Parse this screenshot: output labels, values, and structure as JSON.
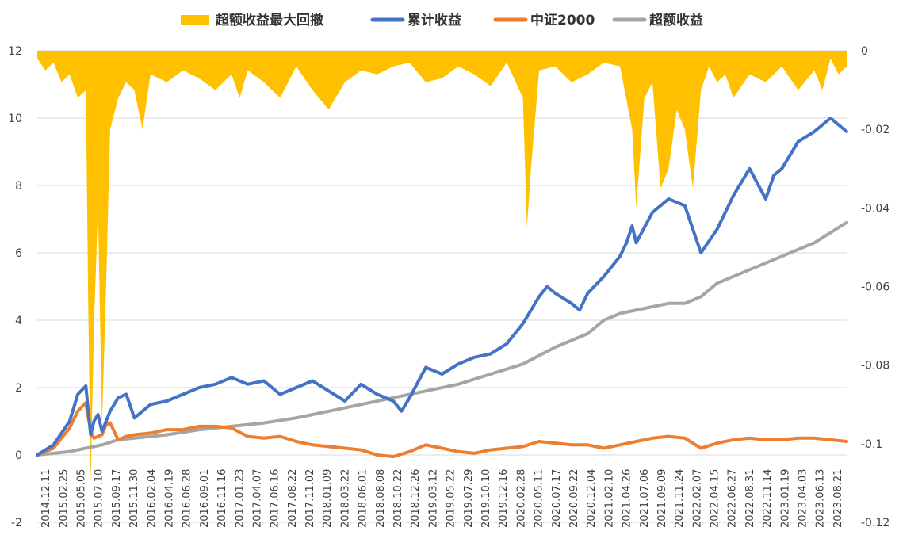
{
  "chart_data": {
    "type": "line",
    "legend": [
      "超额收益最大回撤",
      "累计收益",
      "中证2000",
      "超额收益"
    ],
    "legend_position": "top",
    "grid": true,
    "colors": {
      "drawdown": "#FFC000",
      "cumulative": "#4472C4",
      "csi2000": "#ED7D31",
      "excess": "#A5A5A5",
      "grid": "#D9D9D9",
      "text": "#404040"
    },
    "y_left": {
      "ticks": [
        "-2",
        "0",
        "2",
        "4",
        "6",
        "8",
        "10",
        "12"
      ],
      "range": [
        -2,
        12
      ]
    },
    "y_right": {
      "ticks": [
        "0",
        "-0.02",
        "-0.04",
        "-0.06",
        "-0.08",
        "-0.1",
        "-0.12"
      ],
      "range": [
        -0.12,
        0
      ]
    },
    "x_labels": [
      "2014.12.11",
      "2015.02.25",
      "2015.05.05",
      "2015.07.10",
      "2015.09.17",
      "2015.11.30",
      "2016.02.04",
      "2016.04.19",
      "2016.06.28",
      "2016.09.01",
      "2016.11.16",
      "2017.01.23",
      "2017.04.07",
      "2017.06.16",
      "2017.08.22",
      "2017.11.02",
      "2018.01.09",
      "2018.03.22",
      "2018.06.01",
      "2018.08.08",
      "2018.10.22",
      "2018.12.26",
      "2019.03.12",
      "2019.05.22",
      "2019.07.29",
      "2019.10.10",
      "2019.12.16",
      "2020.02.28",
      "2020.05.11",
      "2020.07.17",
      "2020.09.22",
      "2020.12.04",
      "2021.02.10",
      "2021.04.26",
      "2021.07.06",
      "2021.09.09",
      "2021.11.24",
      "2022.02.07",
      "2022.04.15",
      "2022.06.27",
      "2022.08.31",
      "2022.11.14",
      "2023.01.19",
      "2023.04.03",
      "2023.06.13",
      "2023.08.21"
    ],
    "series": [
      {
        "name": "累计收益",
        "axis": "left",
        "x_positions": [
          0,
          2,
          4,
          5,
          6,
          6.3,
          6.6,
          7,
          7.5,
          8,
          8.5,
          9,
          10,
          11,
          12,
          13,
          14,
          16,
          18,
          20,
          22,
          24,
          26,
          28,
          30,
          32,
          34,
          36,
          38,
          40,
          42,
          44,
          45,
          46,
          48,
          50,
          52,
          54,
          56,
          58,
          60,
          62,
          63,
          64,
          66,
          67,
          68,
          70,
          72,
          72.8,
          73.5,
          74,
          76,
          78,
          80,
          82,
          84,
          86,
          88,
          90,
          91,
          92,
          94,
          96,
          98,
          100
        ],
        "values": [
          0.0,
          0.3,
          1.0,
          1.8,
          2.05,
          1.3,
          0.6,
          1.0,
          1.2,
          0.7,
          1.0,
          1.3,
          1.7,
          1.8,
          1.1,
          1.3,
          1.5,
          1.6,
          1.8,
          2.0,
          2.1,
          2.3,
          2.1,
          2.2,
          1.8,
          2.0,
          2.2,
          1.9,
          1.6,
          2.1,
          1.8,
          1.6,
          1.3,
          1.7,
          2.6,
          2.4,
          2.7,
          2.9,
          3.0,
          3.3,
          3.9,
          4.7,
          5.0,
          4.8,
          4.5,
          4.3,
          4.8,
          5.3,
          5.9,
          6.3,
          6.8,
          6.3,
          7.2,
          7.6,
          7.4,
          6.0,
          6.7,
          7.7,
          8.5,
          7.6,
          8.3,
          8.5,
          9.3,
          9.6,
          10.0,
          9.6
        ]
      },
      {
        "name": "中证2000",
        "axis": "left",
        "x_positions": [
          0,
          2,
          4,
          5,
          6,
          6.6,
          7,
          8,
          8.5,
          9,
          10,
          11,
          12,
          14,
          16,
          18,
          20,
          22,
          24,
          26,
          28,
          30,
          32,
          34,
          36,
          38,
          40,
          42,
          44,
          46,
          48,
          50,
          52,
          54,
          56,
          58,
          60,
          62,
          64,
          66,
          68,
          70,
          72,
          74,
          76,
          78,
          80,
          82,
          84,
          86,
          88,
          90,
          92,
          94,
          96,
          98,
          100
        ],
        "values": [
          0.0,
          0.2,
          0.8,
          1.3,
          1.55,
          0.7,
          0.5,
          0.6,
          0.9,
          0.95,
          0.45,
          0.55,
          0.6,
          0.65,
          0.75,
          0.75,
          0.85,
          0.85,
          0.8,
          0.55,
          0.5,
          0.55,
          0.4,
          0.3,
          0.25,
          0.2,
          0.15,
          0.0,
          -0.05,
          0.1,
          0.3,
          0.2,
          0.1,
          0.05,
          0.15,
          0.2,
          0.25,
          0.4,
          0.35,
          0.3,
          0.3,
          0.2,
          0.3,
          0.4,
          0.5,
          0.55,
          0.5,
          0.2,
          0.35,
          0.45,
          0.5,
          0.45,
          0.45,
          0.5,
          0.5,
          0.45,
          0.4
        ]
      },
      {
        "name": "超额收益",
        "axis": "left",
        "x_positions": [
          0,
          4,
          6,
          8,
          10,
          12,
          16,
          20,
          24,
          28,
          32,
          36,
          40,
          44,
          48,
          52,
          56,
          60,
          64,
          68,
          70,
          72,
          76,
          78,
          80,
          82,
          84,
          88,
          92,
          96,
          100
        ],
        "values": [
          0.0,
          0.1,
          0.2,
          0.3,
          0.45,
          0.5,
          0.6,
          0.75,
          0.85,
          0.95,
          1.1,
          1.3,
          1.5,
          1.7,
          1.9,
          2.1,
          2.4,
          2.7,
          3.2,
          3.6,
          4.0,
          4.2,
          4.4,
          4.5,
          4.5,
          4.7,
          5.1,
          5.5,
          5.9,
          6.3,
          6.9
        ]
      },
      {
        "name": "超额收益最大回撤",
        "type": "area",
        "axis": "right",
        "x_positions": [
          0,
          1,
          2,
          3,
          4,
          5,
          6,
          6.3,
          6.6,
          7,
          7.5,
          8,
          8.5,
          9,
          10,
          11,
          12,
          13,
          14,
          16,
          18,
          20,
          22,
          24,
          25,
          26,
          28,
          30,
          32,
          34,
          36,
          38,
          40,
          42,
          44,
          46,
          48,
          50,
          52,
          54,
          56,
          58,
          60,
          60.5,
          61,
          62,
          64,
          66,
          68,
          70,
          72,
          73.5,
          74,
          75,
          76,
          77,
          78,
          79,
          80,
          81,
          82,
          83,
          84,
          85,
          86,
          88,
          90,
          92,
          94,
          96,
          97,
          98,
          99,
          100
        ],
        "values": [
          -0.002,
          -0.005,
          -0.003,
          -0.008,
          -0.006,
          -0.012,
          -0.01,
          -0.065,
          -0.11,
          -0.07,
          -0.04,
          -0.095,
          -0.06,
          -0.02,
          -0.012,
          -0.008,
          -0.01,
          -0.02,
          -0.006,
          -0.008,
          -0.005,
          -0.007,
          -0.01,
          -0.006,
          -0.012,
          -0.005,
          -0.008,
          -0.012,
          -0.004,
          -0.01,
          -0.015,
          -0.008,
          -0.005,
          -0.006,
          -0.004,
          -0.003,
          -0.008,
          -0.007,
          -0.004,
          -0.006,
          -0.009,
          -0.003,
          -0.012,
          -0.045,
          -0.03,
          -0.005,
          -0.004,
          -0.008,
          -0.006,
          -0.003,
          -0.004,
          -0.02,
          -0.04,
          -0.012,
          -0.008,
          -0.035,
          -0.03,
          -0.015,
          -0.02,
          -0.035,
          -0.01,
          -0.004,
          -0.008,
          -0.006,
          -0.012,
          -0.006,
          -0.008,
          -0.004,
          -0.01,
          -0.005,
          -0.01,
          -0.002,
          -0.006,
          -0.004
        ]
      }
    ]
  }
}
